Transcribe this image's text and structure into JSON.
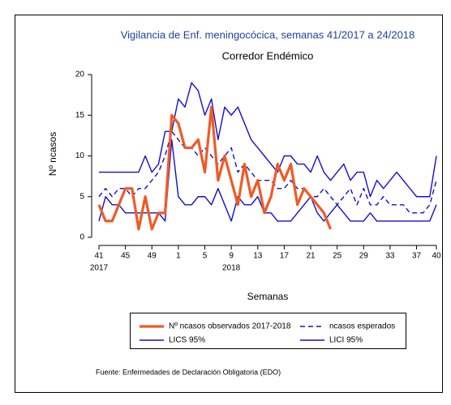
{
  "chart_data": {
    "type": "line",
    "title": "Vigilancia de Enf. meningocócica, semanas 41/2017 a 24/2018",
    "subtitle": "Corredor Endémico",
    "x_label": "Semanas",
    "y_label": "Nº ncasos",
    "source": "Fuente: Enfermedades de Declaración Obligatoria (EDO)",
    "categories": [
      "41",
      null,
      null,
      null,
      "45",
      null,
      null,
      null,
      "49",
      null,
      null,
      null,
      "1",
      null,
      null,
      null,
      "5",
      null,
      null,
      null,
      "9",
      null,
      null,
      null,
      "13",
      null,
      null,
      null,
      "17",
      null,
      null,
      null,
      "21",
      null,
      null,
      null,
      "25",
      null,
      null,
      null,
      "29",
      null,
      null,
      null,
      "33",
      null,
      null,
      null,
      "37",
      null,
      null,
      "40"
    ],
    "year_labels": [
      "2017",
      null,
      null,
      null,
      null,
      null,
      null,
      null,
      null,
      null,
      null,
      null,
      null,
      null,
      null,
      null,
      null,
      null,
      null,
      null,
      "2018",
      null,
      null,
      null,
      null,
      null,
      null,
      null,
      null,
      null,
      null,
      null,
      null,
      null,
      null,
      null,
      null,
      null,
      null,
      null,
      null,
      null,
      null,
      null,
      null,
      null,
      null,
      null,
      null,
      null,
      null,
      null
    ],
    "ylim": [
      0,
      20
    ],
    "yticks": [
      0,
      5,
      10,
      15,
      20
    ],
    "series": [
      {
        "name": "Nº ncasos observados 2017-2018",
        "color": "#f15a24",
        "width": 3.2,
        "dashed": false,
        "values": [
          4,
          2,
          2,
          4,
          6,
          6,
          1,
          5,
          1,
          3,
          3,
          15,
          14,
          11,
          11,
          12,
          8,
          16,
          7,
          10,
          7,
          4,
          9,
          5,
          7,
          3,
          5,
          9,
          7,
          9,
          4,
          6,
          5,
          4,
          3,
          1,
          null,
          null,
          null,
          null,
          null,
          null,
          null,
          null,
          null,
          null,
          null,
          null,
          null,
          null,
          null,
          null
        ]
      },
      {
        "name": "ncasos esperados",
        "color": "#1010d0",
        "width": 1.4,
        "dashed": true,
        "values": [
          5,
          6,
          5,
          6,
          6,
          5,
          6,
          6,
          7,
          8,
          10,
          13,
          12,
          11,
          11,
          10,
          11,
          10,
          9,
          10,
          11,
          8,
          9,
          8,
          7,
          7,
          7,
          6,
          6,
          7,
          6,
          6,
          5,
          5,
          6,
          5,
          4,
          5,
          6,
          4,
          6,
          4,
          4,
          5,
          4,
          4,
          4,
          3,
          3,
          3,
          4,
          7
        ]
      },
      {
        "name": "LICS 95%",
        "color": "#1010d0",
        "width": 1.4,
        "dashed": false,
        "values": [
          8,
          8,
          8,
          8,
          8,
          8,
          8,
          10,
          8,
          9,
          13,
          13,
          17,
          16,
          19,
          18,
          15,
          17,
          12,
          16,
          15,
          16,
          14,
          12,
          11,
          10,
          9,
          8,
          10,
          10,
          9,
          9,
          8,
          10,
          8,
          7,
          8,
          9,
          7,
          8,
          8,
          5,
          7,
          6,
          7,
          8,
          7,
          6,
          5,
          5,
          5,
          10
        ]
      },
      {
        "name": "LICI 95%",
        "color": "#1010d0",
        "width": 1.4,
        "dashed": false,
        "values": [
          2,
          5,
          4,
          4,
          3,
          3,
          3,
          3,
          3,
          3,
          2,
          12,
          5,
          4,
          4,
          5,
          5,
          4,
          6,
          4,
          2,
          5,
          4,
          4,
          5,
          3,
          3,
          2,
          2,
          2,
          3,
          4,
          5,
          3,
          2,
          3,
          4,
          3,
          2,
          2,
          2,
          3,
          2,
          2,
          2,
          2,
          2,
          2,
          2,
          2,
          2,
          4
        ]
      }
    ]
  }
}
